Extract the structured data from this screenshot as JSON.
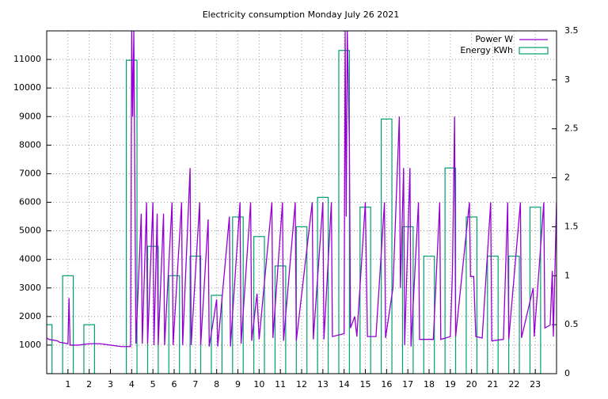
{
  "chart_data": {
    "type": "line",
    "title": "Electricity consumption Monday July 26 2021",
    "xlim": [
      0,
      24
    ],
    "xticks": [
      1,
      2,
      3,
      4,
      5,
      6,
      7,
      8,
      9,
      10,
      11,
      12,
      13,
      14,
      15,
      16,
      17,
      18,
      19,
      20,
      21,
      22,
      23
    ],
    "ylim": [
      0,
      12000
    ],
    "yticks": [
      1000,
      2000,
      3000,
      4000,
      5000,
      6000,
      7000,
      8000,
      9000,
      10000,
      11000
    ],
    "y2lim": [
      0,
      3.5
    ],
    "y2ticks": [
      0,
      0.5,
      1,
      1.5,
      2,
      2.5,
      3,
      3.5
    ],
    "grid": true,
    "legend": "top-right",
    "series": [
      {
        "name": "Power W",
        "color": "#9400d3",
        "type": "line",
        "x": [
          0,
          0.1,
          0.5,
          0.6,
          1.0,
          1.05,
          1.1,
          1.5,
          2.0,
          2.5,
          3.0,
          3.5,
          3.95,
          4.0,
          4.05,
          4.1,
          4.2,
          4.45,
          4.5,
          4.7,
          4.75,
          5.0,
          5.05,
          5.2,
          5.25,
          5.5,
          5.55,
          5.9,
          5.95,
          6.35,
          6.4,
          6.75,
          6.8,
          7.2,
          7.25,
          7.6,
          7.65,
          8.0,
          8.05,
          8.6,
          8.65,
          9.1,
          9.15,
          9.6,
          9.65,
          9.9,
          10.0,
          10.6,
          10.65,
          11.1,
          11.15,
          11.7,
          11.75,
          12.5,
          12.55,
          13.0,
          13.05,
          13.4,
          13.45,
          14.0,
          14.05,
          14.1,
          14.15,
          14.25,
          14.3,
          14.5,
          14.6,
          15.0,
          15.05,
          15.1,
          15.5,
          15.9,
          15.95,
          16.3,
          16.6,
          16.65,
          16.8,
          16.85,
          17.1,
          17.15,
          17.5,
          17.55,
          18.2,
          18.5,
          18.55,
          19.0,
          19.1,
          19.2,
          19.25,
          19.9,
          19.95,
          20.1,
          20.2,
          20.5,
          20.9,
          20.95,
          21.5,
          21.7,
          21.75,
          22.3,
          22.35,
          22.9,
          22.95,
          23.4,
          23.45,
          23.7,
          23.8,
          23.85,
          24.0
        ],
        "values": [
          1250,
          1200,
          1150,
          1100,
          1050,
          2650,
          1000,
          1000,
          1050,
          1050,
          1000,
          950,
          950,
          12000,
          9000,
          12000,
          1050,
          5600,
          1050,
          6000,
          1050,
          6000,
          1000,
          5600,
          1000,
          5600,
          1000,
          6000,
          1000,
          6000,
          1000,
          7200,
          1000,
          6000,
          1000,
          5400,
          950,
          2600,
          950,
          5500,
          950,
          6000,
          1050,
          6000,
          1150,
          2800,
          1200,
          6000,
          1250,
          6000,
          1150,
          6000,
          1150,
          6000,
          1200,
          6000,
          1200,
          6000,
          1300,
          1400,
          12000,
          5500,
          12000,
          8000,
          1600,
          2000,
          1300,
          6000,
          3500,
          1300,
          1300,
          6000,
          1250,
          3000,
          9000,
          3000,
          7200,
          1000,
          7200,
          950,
          6000,
          1200,
          1200,
          6000,
          1200,
          1300,
          3600,
          9000,
          1300,
          6000,
          3400,
          3400,
          1300,
          1250,
          6000,
          1150,
          1200,
          6000,
          1200,
          6000,
          1250,
          3000,
          1300,
          6000,
          1600,
          1700,
          3600,
          1300,
          6000
        ]
      },
      {
        "name": "Energy KWh",
        "color": "#009e73",
        "type": "boxes",
        "axis": "y2",
        "x": [
          0,
          1,
          2,
          3,
          4,
          5,
          6,
          7,
          8,
          9,
          10,
          11,
          12,
          13,
          14,
          15,
          16,
          17,
          18,
          19,
          20,
          21,
          22,
          23
        ],
        "values": [
          0.5,
          1.0,
          0.5,
          0,
          3.2,
          1.3,
          1.0,
          1.2,
          0.8,
          1.6,
          1.4,
          1.1,
          1.5,
          1.8,
          3.3,
          1.7,
          2.6,
          1.5,
          1.2,
          2.1,
          1.6,
          1.2,
          1.2,
          1.7
        ]
      }
    ]
  }
}
